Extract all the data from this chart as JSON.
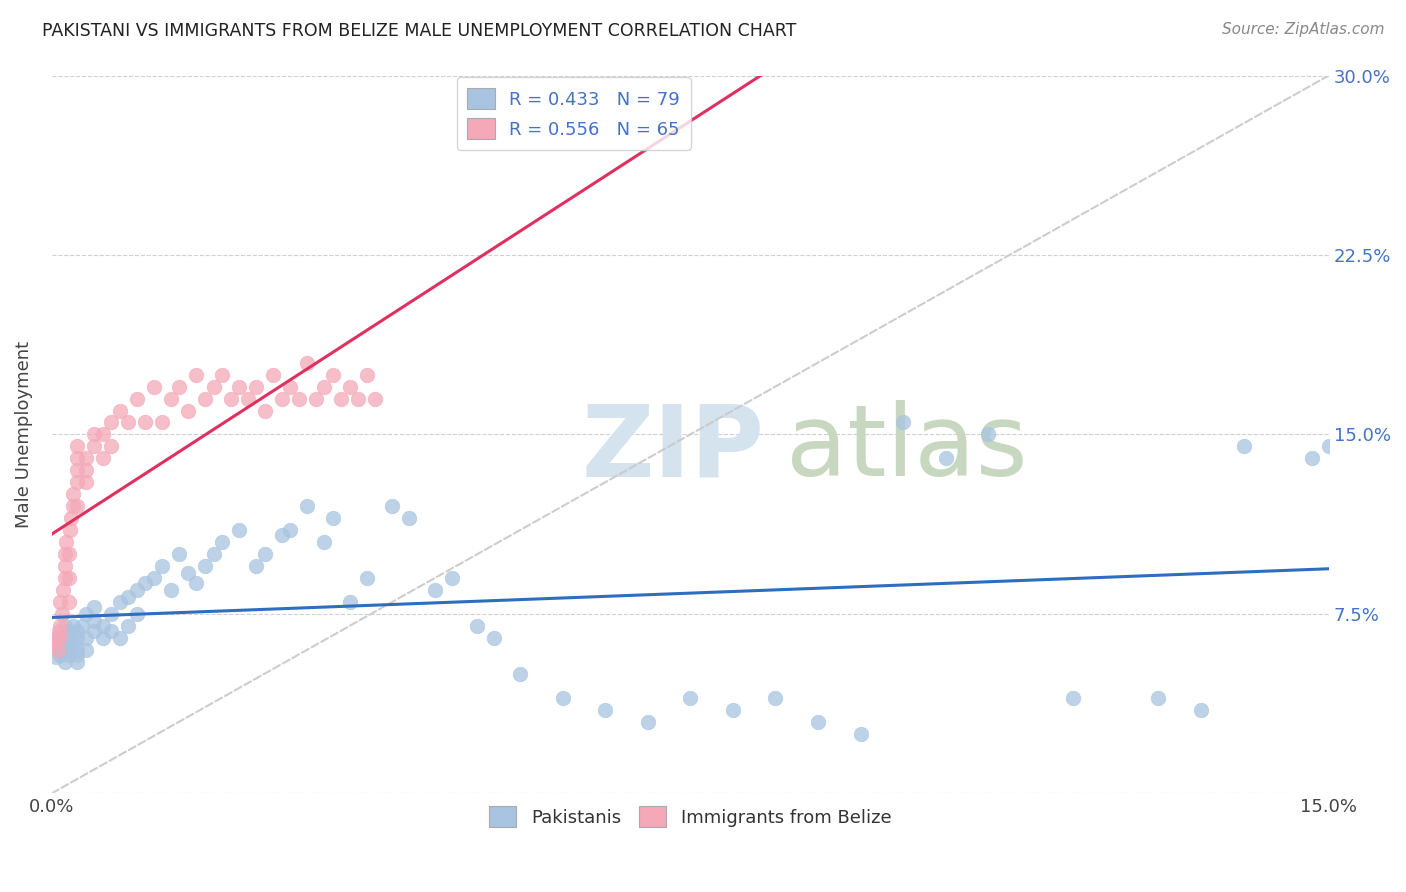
{
  "title": "PAKISTANI VS IMMIGRANTS FROM BELIZE MALE UNEMPLOYMENT CORRELATION CHART",
  "source": "Source: ZipAtlas.com",
  "ylabel": "Male Unemployment",
  "xlim": [
    0.0,
    0.15
  ],
  "ylim": [
    0.0,
    0.3
  ],
  "color_blue": "#A8C4E0",
  "color_pink": "#F4A8B8",
  "color_blue_line": "#2E6EBF",
  "color_pink_line": "#E03060",
  "color_dashed": "#C8C8C8",
  "legend_R1": "R = 0.433",
  "legend_N1": "N = 79",
  "legend_R2": "R = 0.556",
  "legend_N2": "N = 65",
  "watermark_zip_color": "#D5E3EF",
  "watermark_atlas_color": "#C8D8C0",
  "pak_x": [
    0.0005,
    0.001,
    0.001,
    0.001,
    0.0015,
    0.0015,
    0.0015,
    0.002,
    0.002,
    0.002,
    0.002,
    0.0025,
    0.0025,
    0.003,
    0.003,
    0.003,
    0.003,
    0.003,
    0.0035,
    0.004,
    0.004,
    0.004,
    0.005,
    0.005,
    0.005,
    0.006,
    0.006,
    0.007,
    0.007,
    0.008,
    0.008,
    0.009,
    0.009,
    0.01,
    0.01,
    0.011,
    0.012,
    0.013,
    0.014,
    0.015,
    0.016,
    0.017,
    0.018,
    0.019,
    0.02,
    0.022,
    0.024,
    0.025,
    0.027,
    0.028,
    0.03,
    0.032,
    0.033,
    0.035,
    0.037,
    0.04,
    0.042,
    0.045,
    0.047,
    0.05,
    0.052,
    0.055,
    0.06,
    0.065,
    0.07,
    0.075,
    0.08,
    0.085,
    0.09,
    0.095,
    0.1,
    0.105,
    0.11,
    0.12,
    0.13,
    0.135,
    0.14,
    0.148,
    0.15
  ],
  "pak_y": [
    0.057,
    0.06,
    0.065,
    0.058,
    0.062,
    0.07,
    0.055,
    0.065,
    0.06,
    0.068,
    0.058,
    0.063,
    0.07,
    0.06,
    0.065,
    0.068,
    0.058,
    0.055,
    0.07,
    0.065,
    0.075,
    0.06,
    0.072,
    0.068,
    0.078,
    0.065,
    0.07,
    0.075,
    0.068,
    0.08,
    0.065,
    0.082,
    0.07,
    0.085,
    0.075,
    0.088,
    0.09,
    0.095,
    0.085,
    0.1,
    0.092,
    0.088,
    0.095,
    0.1,
    0.105,
    0.11,
    0.095,
    0.1,
    0.108,
    0.11,
    0.12,
    0.105,
    0.115,
    0.08,
    0.09,
    0.12,
    0.115,
    0.085,
    0.09,
    0.07,
    0.065,
    0.05,
    0.04,
    0.035,
    0.03,
    0.04,
    0.035,
    0.04,
    0.03,
    0.025,
    0.155,
    0.14,
    0.15,
    0.04,
    0.04,
    0.035,
    0.145,
    0.14,
    0.145
  ],
  "bel_x": [
    0.0003,
    0.0005,
    0.0007,
    0.0008,
    0.001,
    0.001,
    0.001,
    0.0012,
    0.0013,
    0.0015,
    0.0015,
    0.0015,
    0.0017,
    0.002,
    0.002,
    0.002,
    0.0022,
    0.0023,
    0.0025,
    0.0025,
    0.003,
    0.003,
    0.003,
    0.003,
    0.003,
    0.004,
    0.004,
    0.004,
    0.005,
    0.005,
    0.006,
    0.006,
    0.007,
    0.007,
    0.008,
    0.009,
    0.01,
    0.011,
    0.012,
    0.013,
    0.014,
    0.015,
    0.016,
    0.017,
    0.018,
    0.019,
    0.02,
    0.021,
    0.022,
    0.023,
    0.024,
    0.025,
    0.026,
    0.027,
    0.028,
    0.029,
    0.03,
    0.031,
    0.032,
    0.033,
    0.034,
    0.035,
    0.036,
    0.037,
    0.038
  ],
  "bel_y": [
    0.063,
    0.065,
    0.06,
    0.068,
    0.07,
    0.065,
    0.08,
    0.075,
    0.085,
    0.09,
    0.1,
    0.095,
    0.105,
    0.08,
    0.09,
    0.1,
    0.11,
    0.115,
    0.12,
    0.125,
    0.13,
    0.14,
    0.135,
    0.12,
    0.145,
    0.13,
    0.14,
    0.135,
    0.145,
    0.15,
    0.14,
    0.15,
    0.145,
    0.155,
    0.16,
    0.155,
    0.165,
    0.155,
    0.17,
    0.155,
    0.165,
    0.17,
    0.16,
    0.175,
    0.165,
    0.17,
    0.175,
    0.165,
    0.17,
    0.165,
    0.17,
    0.16,
    0.175,
    0.165,
    0.17,
    0.165,
    0.18,
    0.165,
    0.17,
    0.175,
    0.165,
    0.17,
    0.165,
    0.175,
    0.165
  ]
}
